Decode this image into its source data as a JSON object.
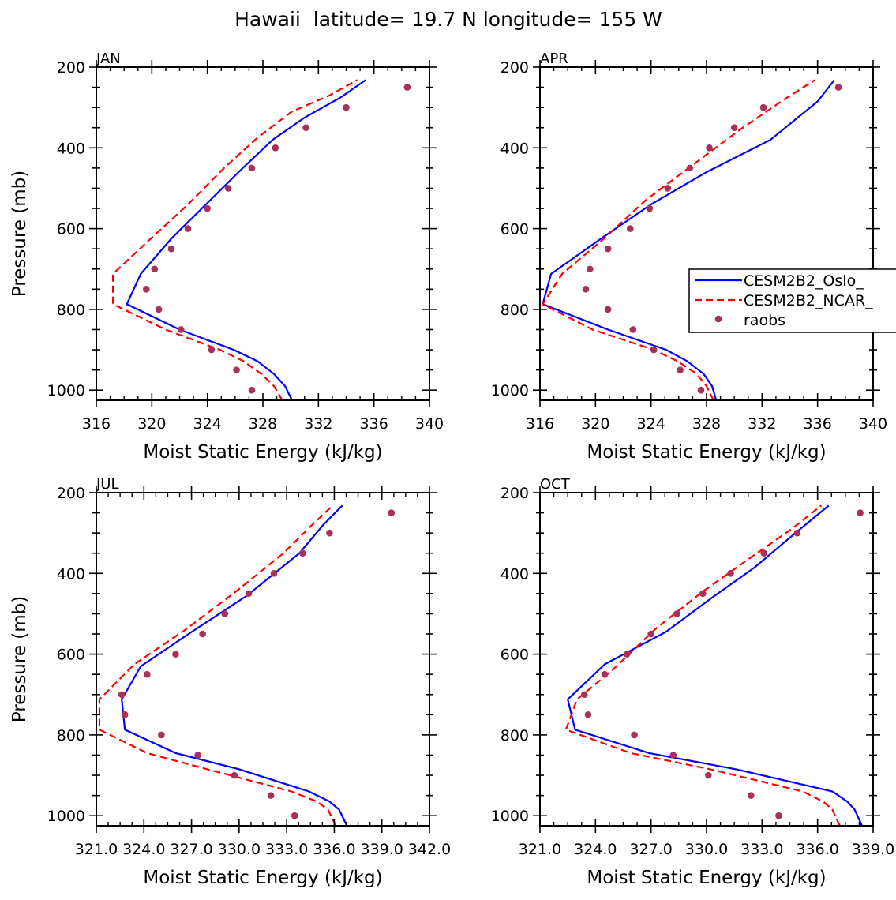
{
  "figure": {
    "title": "Hawaii  latitude= 19.7 N longitude= 155 W"
  },
  "colors": {
    "oslo": "#0000ff",
    "ncar": "#ff0000",
    "raobs": "#a8305a",
    "axis": "#000000"
  },
  "legend": {
    "entries": [
      "CESM2B2_Oslo_",
      "CESM2B2_NCAR_",
      "raobs"
    ]
  },
  "chart_data": [
    {
      "type": "line",
      "panel": "JAN",
      "xlabel": "Moist Static Energy (kJ/kg)",
      "ylabel": "Pressure (mb)",
      "xlim": [
        316,
        340
      ],
      "ylim": [
        1025,
        200
      ],
      "xticks": [
        316,
        320,
        324,
        328,
        332,
        336,
        340
      ],
      "xticklabels": [
        "316",
        "320",
        "324",
        "328",
        "332",
        "336",
        "340"
      ],
      "yticks": [
        200,
        400,
        600,
        800,
        1000
      ],
      "yticklabels": [
        "200",
        "400",
        "600",
        "800",
        "1000"
      ],
      "series": [
        {
          "name": "CESM2B2_Oslo_",
          "style": "solid",
          "x": [
            330.1,
            329.6,
            328.8,
            327.6,
            325.9,
            322.0,
            318.2,
            319.2,
            321.4,
            323.9,
            326.4,
            328.7,
            331.0,
            333.6,
            335.4
          ],
          "y": [
            1025,
            990,
            960,
            928,
            900,
            850,
            787,
            712,
            625,
            540,
            455,
            380,
            325,
            275,
            232
          ]
        },
        {
          "name": "CESM2B2_NCAR_",
          "style": "dashed",
          "x": [
            329.4,
            328.8,
            327.9,
            326.6,
            324.9,
            321.0,
            317.2,
            317.2,
            319.6,
            322.6,
            325.2,
            327.6,
            330.1,
            332.8,
            334.8
          ],
          "y": [
            1025,
            990,
            960,
            928,
            900,
            850,
            787,
            712,
            635,
            540,
            450,
            375,
            310,
            270,
            232
          ]
        },
        {
          "name": "raobs",
          "style": "marker",
          "x": [
            338.4,
            334.0,
            331.1,
            328.9,
            327.2,
            325.5,
            324.0,
            322.6,
            321.4,
            320.2,
            319.6,
            320.5,
            322.1,
            324.3,
            326.1,
            327.2
          ],
          "y": [
            250,
            300,
            350,
            400,
            450,
            500,
            550,
            600,
            650,
            700,
            750,
            800,
            850,
            900,
            950,
            1000
          ]
        }
      ]
    },
    {
      "type": "line",
      "panel": "APR",
      "xlabel": "Moist Static Energy (kJ/kg)",
      "ylabel": "",
      "xlim": [
        316,
        340
      ],
      "ylim": [
        1025,
        200
      ],
      "xticks": [
        316,
        320,
        324,
        328,
        332,
        336,
        340
      ],
      "xticklabels": [
        "316",
        "320",
        "324",
        "328",
        "332",
        "336",
        "340"
      ],
      "yticks": [
        200,
        400,
        600,
        800,
        1000
      ],
      "yticklabels": [
        "200",
        "400",
        "600",
        "800",
        "1000"
      ],
      "legend_position": "right",
      "series": [
        {
          "name": "CESM2B2_Oslo_",
          "style": "solid",
          "x": [
            328.7,
            328.4,
            327.8,
            326.6,
            325.1,
            320.9,
            316.2,
            316.8,
            320.6,
            324.0,
            328.0,
            332.6,
            336.0,
            337.2
          ],
          "y": [
            1025,
            990,
            960,
            928,
            900,
            850,
            787,
            712,
            620,
            540,
            460,
            380,
            285,
            232
          ]
        },
        {
          "name": "CESM2B2_NCAR_",
          "style": "dashed",
          "x": [
            328.5,
            328.0,
            327.3,
            325.9,
            324.2,
            319.8,
            316.2,
            317.6,
            320.6,
            323.6,
            326.9,
            330.4,
            333.6,
            335.8
          ],
          "y": [
            1025,
            990,
            960,
            928,
            900,
            850,
            787,
            712,
            625,
            530,
            445,
            355,
            280,
            232
          ]
        },
        {
          "name": "raobs",
          "style": "marker",
          "x": [
            337.5,
            332.1,
            330.0,
            328.2,
            326.8,
            325.2,
            323.9,
            322.5,
            320.9,
            319.6,
            319.3,
            320.9,
            322.7,
            324.2,
            326.1,
            327.6
          ],
          "y": [
            250,
            300,
            350,
            400,
            450,
            500,
            550,
            600,
            650,
            700,
            750,
            800,
            850,
            900,
            950,
            1000
          ]
        }
      ]
    },
    {
      "type": "line",
      "panel": "JUL",
      "xlabel": "Moist Static Energy (kJ/kg)",
      "ylabel": "Pressure (mb)",
      "xlim": [
        321.0,
        342.0
      ],
      "ylim": [
        1025,
        200
      ],
      "xticks": [
        321.0,
        324.0,
        327.0,
        330.0,
        333.0,
        336.0,
        339.0,
        342.0
      ],
      "xticklabels": [
        "321.0",
        "324.0",
        "327.0",
        "330.0",
        "333.0",
        "336.0",
        "339.0",
        "342.0"
      ],
      "yticks": [
        200,
        400,
        600,
        800,
        1000
      ],
      "yticklabels": [
        "200",
        "400",
        "600",
        "800",
        "1000"
      ],
      "series": [
        {
          "name": "CESM2B2_Oslo_",
          "style": "solid",
          "x": [
            336.8,
            336.3,
            335.7,
            334.4,
            330.0,
            326.0,
            322.8,
            322.6,
            323.8,
            327.0,
            330.5,
            333.8,
            335.3,
            336.5
          ],
          "y": [
            1025,
            985,
            965,
            940,
            885,
            845,
            787,
            712,
            630,
            545,
            455,
            350,
            280,
            232
          ]
        },
        {
          "name": "CESM2B2_NCAR_",
          "style": "dashed",
          "x": [
            336.1,
            335.6,
            334.9,
            333.3,
            328.0,
            324.2,
            321.2,
            321.2,
            323.4,
            326.6,
            329.8,
            332.8,
            334.6,
            335.9
          ],
          "y": [
            1025,
            985,
            965,
            940,
            885,
            845,
            787,
            712,
            625,
            540,
            445,
            350,
            280,
            232
          ]
        },
        {
          "name": "raobs",
          "style": "marker",
          "x": [
            339.6,
            335.7,
            334.0,
            332.2,
            330.6,
            329.1,
            327.7,
            326.0,
            324.2,
            322.6,
            322.8,
            325.1,
            327.4,
            329.7,
            332.0,
            333.5
          ],
          "y": [
            250,
            300,
            350,
            400,
            450,
            500,
            550,
            600,
            650,
            700,
            750,
            800,
            850,
            900,
            950,
            1000
          ]
        }
      ]
    },
    {
      "type": "line",
      "panel": "OCT",
      "xlabel": "Moist Static Energy (kJ/kg)",
      "ylabel": "",
      "xlim": [
        321.0,
        339.0
      ],
      "ylim": [
        1025,
        200
      ],
      "xticks": [
        321.0,
        324.0,
        327.0,
        330.0,
        333.0,
        336.0,
        339.0
      ],
      "xticklabels": [
        "321.0",
        "324.0",
        "327.0",
        "330.0",
        "333.0",
        "336.0",
        "339.0"
      ],
      "yticks": [
        200,
        400,
        600,
        800,
        1000
      ],
      "yticklabels": [
        "200",
        "400",
        "600",
        "800",
        "1000"
      ],
      "series": [
        {
          "name": "CESM2B2_Oslo_",
          "style": "solid",
          "x": [
            338.4,
            338.0,
            337.6,
            336.8,
            331.6,
            326.9,
            322.9,
            322.5,
            324.5,
            327.8,
            330.3,
            332.6,
            334.8,
            336.6
          ],
          "y": [
            1025,
            985,
            965,
            940,
            885,
            845,
            787,
            712,
            625,
            545,
            460,
            385,
            300,
            232
          ]
        },
        {
          "name": "CESM2B2_NCAR_",
          "style": "dashed",
          "x": [
            337.2,
            336.8,
            336.3,
            335.2,
            330.2,
            325.9,
            322.4,
            323.0,
            324.9,
            327.3,
            329.8,
            332.1,
            334.6,
            336.2
          ],
          "y": [
            1025,
            985,
            965,
            940,
            885,
            845,
            787,
            712,
            640,
            535,
            445,
            370,
            290,
            232
          ]
        },
        {
          "name": "raobs",
          "style": "marker",
          "x": [
            338.3,
            334.9,
            333.1,
            331.3,
            329.8,
            328.4,
            327.0,
            325.7,
            324.5,
            323.4,
            323.6,
            326.1,
            328.2,
            330.1,
            332.4,
            333.9
          ],
          "y": [
            250,
            300,
            350,
            400,
            450,
            500,
            550,
            600,
            650,
            700,
            750,
            800,
            850,
            900,
            950,
            1000
          ]
        }
      ]
    }
  ]
}
